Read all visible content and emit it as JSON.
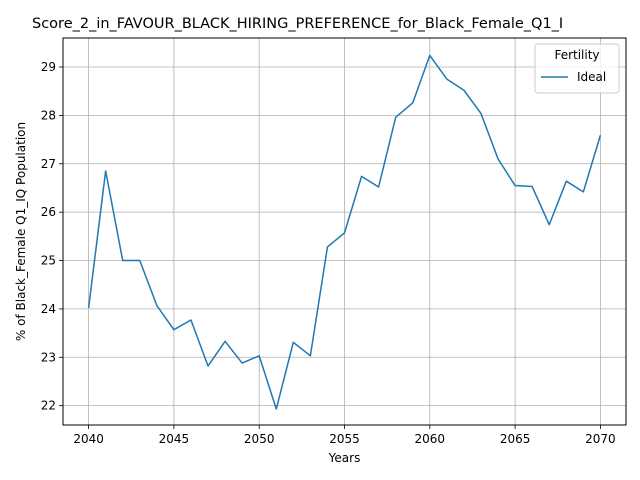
{
  "chart_data": {
    "type": "line",
    "title": "Score_2_in_FAVOUR_BLACK_HIRING_PREFERENCE_for_Black_Female_Q1_I",
    "xlabel": "Years",
    "ylabel": "% of Black_Female Q1_IQ Population",
    "xlim": [
      2038.5,
      2071.5
    ],
    "ylim": [
      21.6,
      29.6
    ],
    "x_ticks": [
      2040,
      2045,
      2050,
      2055,
      2060,
      2065,
      2070
    ],
    "y_ticks": [
      22,
      23,
      24,
      25,
      26,
      27,
      28,
      29
    ],
    "grid": true,
    "legend": {
      "title": "Fertility",
      "placement": "top-right"
    },
    "series": [
      {
        "name": "Ideal",
        "color": "#1f77b4",
        "x": [
          2040,
          2041,
          2042,
          2043,
          2044,
          2045,
          2046,
          2047,
          2048,
          2049,
          2050,
          2051,
          2052,
          2053,
          2054,
          2055,
          2056,
          2057,
          2058,
          2059,
          2060,
          2061,
          2062,
          2063,
          2064,
          2065,
          2066,
          2067,
          2068,
          2069,
          2070
        ],
        "y": [
          24.02,
          26.85,
          25.0,
          25.0,
          24.07,
          23.57,
          23.77,
          22.82,
          23.33,
          22.88,
          23.03,
          21.93,
          23.31,
          23.03,
          25.28,
          25.57,
          26.74,
          26.52,
          27.96,
          28.26,
          29.24,
          28.75,
          28.52,
          28.04,
          27.1,
          26.55,
          26.53,
          25.74,
          26.64,
          26.42,
          27.59
        ]
      }
    ]
  }
}
